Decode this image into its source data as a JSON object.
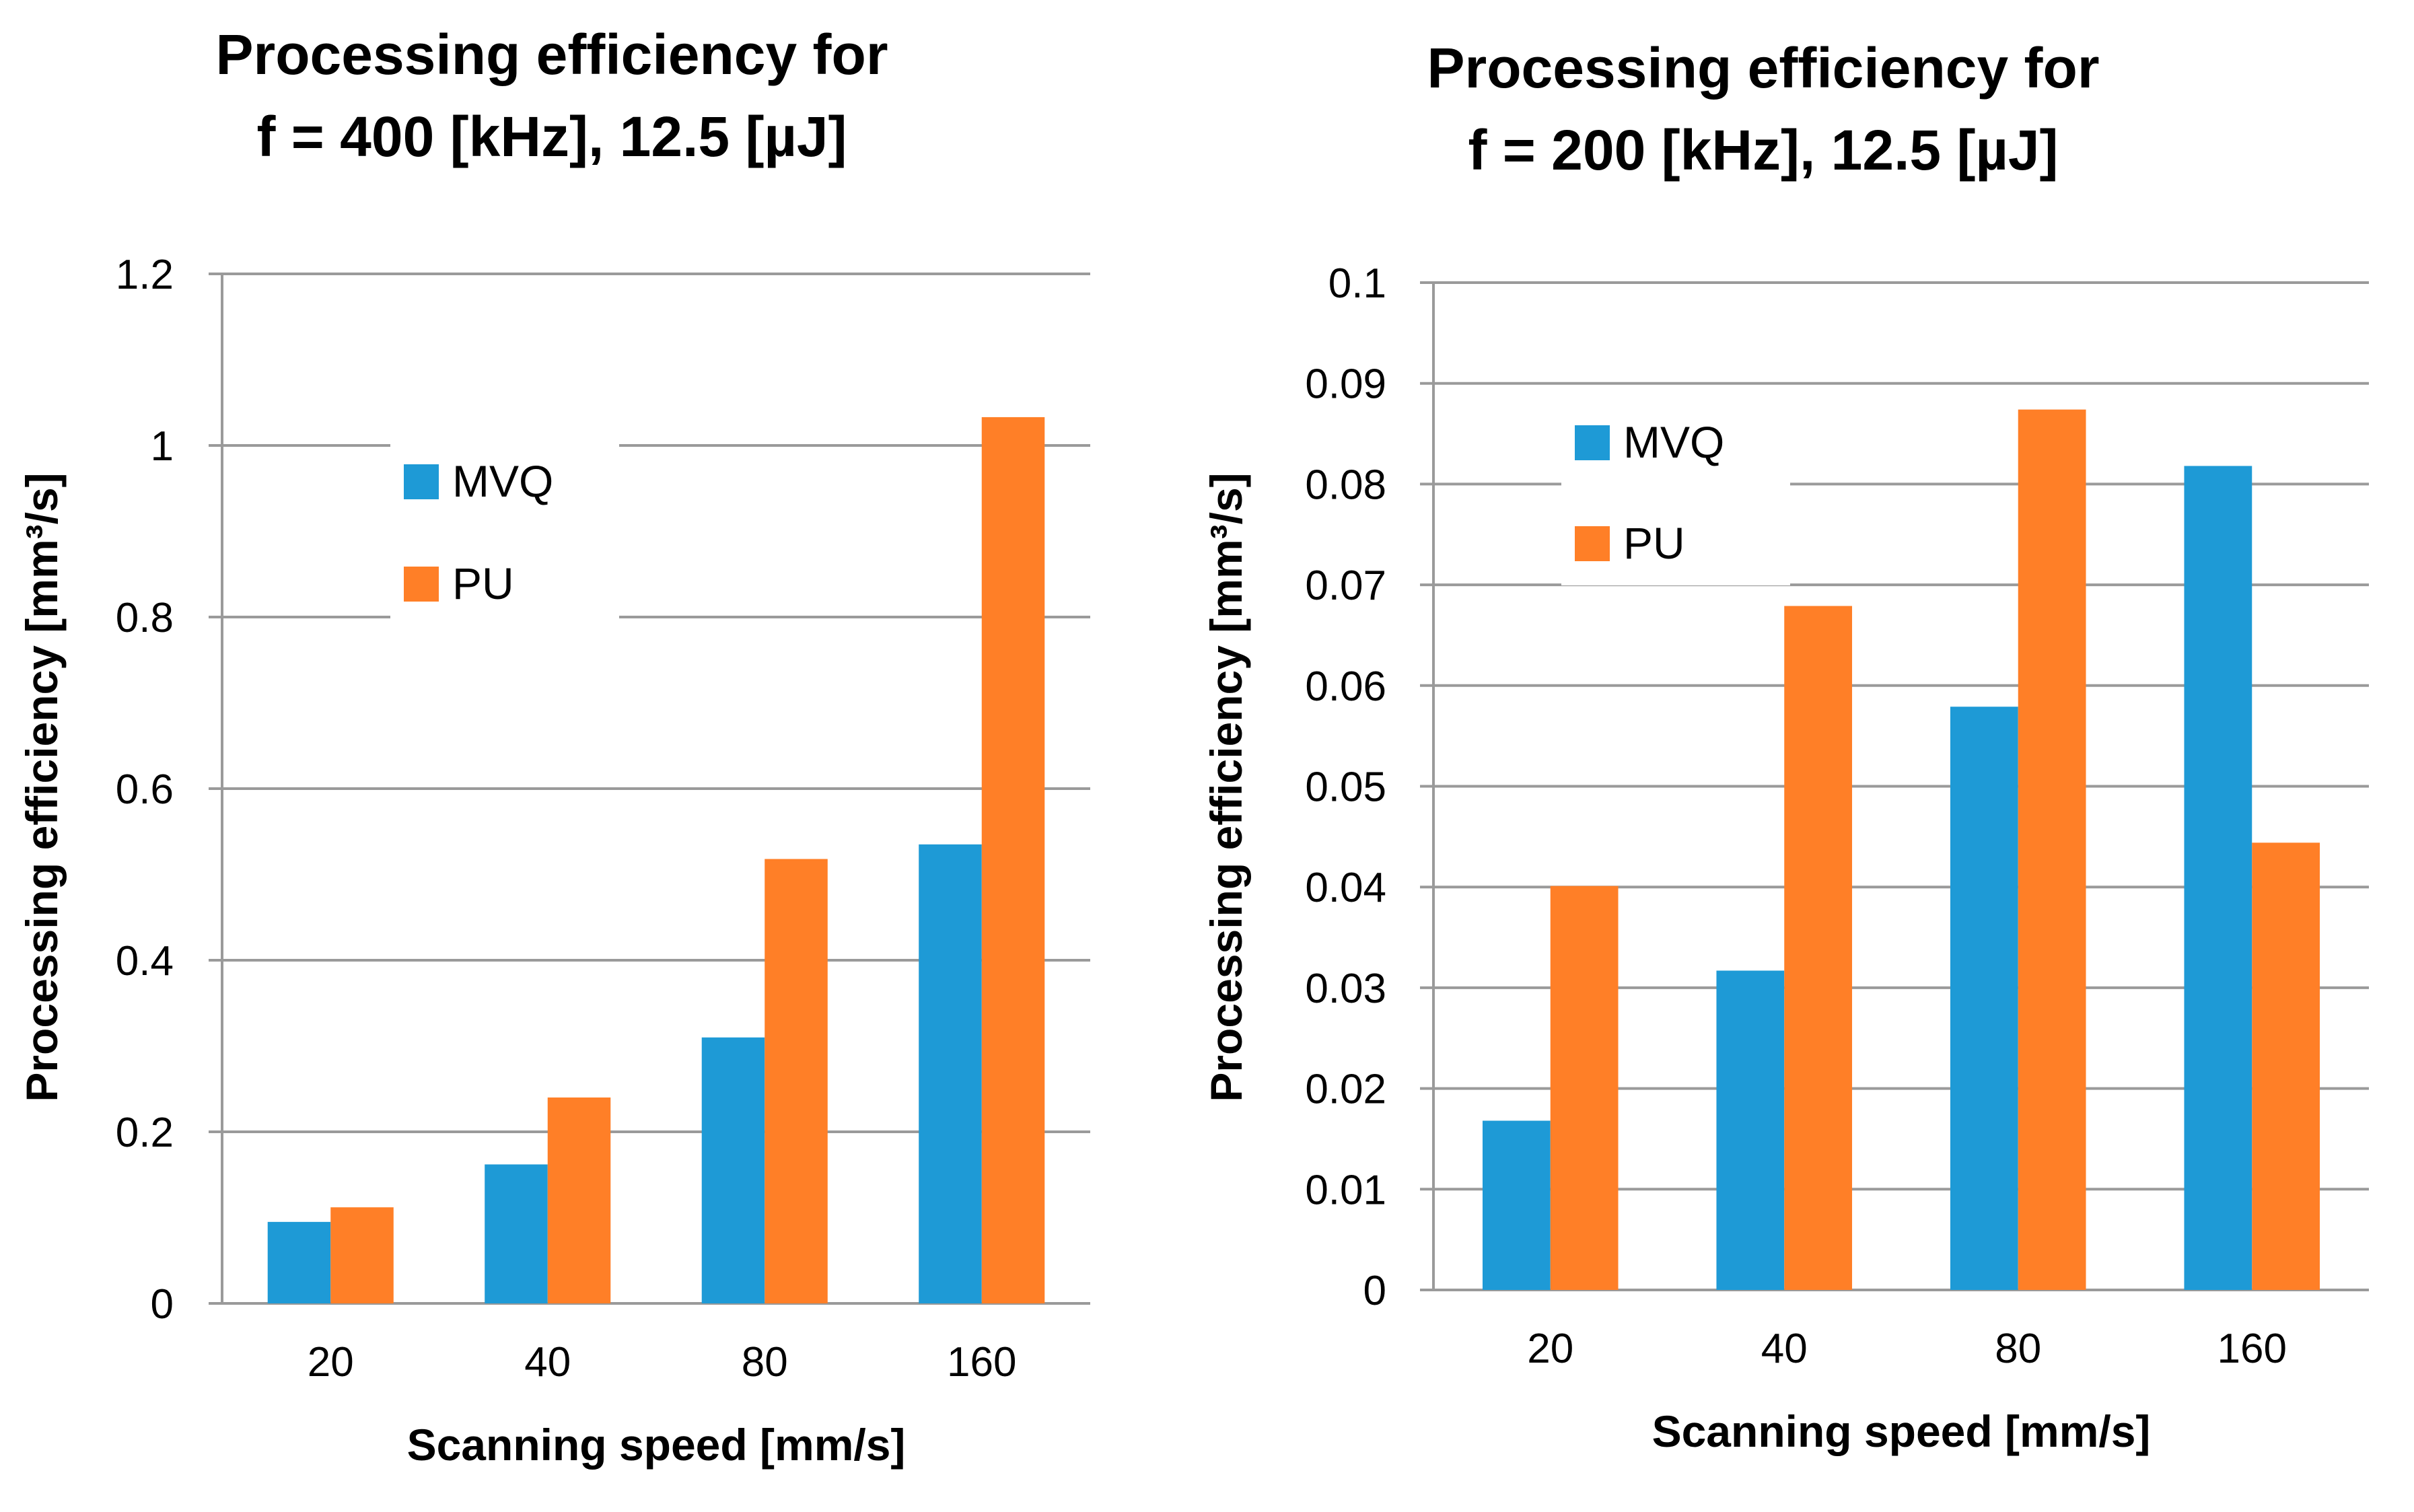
{
  "chart_data": [
    {
      "type": "bar",
      "title_lines": [
        "Processing efficiency for",
        "f = 400 [kHz], 12.5 [µJ]"
      ],
      "categories": [
        "20",
        "40",
        "80",
        "160"
      ],
      "series": [
        {
          "name": "MVQ",
          "color": "#1e9ad6",
          "values": [
            0.095,
            0.162,
            0.31,
            0.535
          ]
        },
        {
          "name": "PU",
          "color": "#ff7f27",
          "values": [
            0.112,
            0.24,
            0.518,
            1.033
          ]
        }
      ],
      "xlabel": "Scanning speed [mm/s]",
      "ylabel": "Processing efficiency [mm³/s]",
      "ylim": [
        0,
        1.2
      ],
      "yticks": [
        "0",
        "0.2",
        "0.4",
        "0.6",
        "0.8",
        "1",
        "1.2"
      ],
      "grid": true,
      "legend": "inside-top-left"
    },
    {
      "type": "bar",
      "title_lines": [
        "Processing efficiency for",
        "f = 200 [kHz], 12.5 [µJ]"
      ],
      "categories": [
        "20",
        "40",
        "80",
        "160"
      ],
      "series": [
        {
          "name": "MVQ",
          "color": "#1e9ad6",
          "values": [
            0.0168,
            0.0317,
            0.0579,
            0.0818
          ]
        },
        {
          "name": "PU",
          "color": "#ff7f27",
          "values": [
            0.0401,
            0.0679,
            0.0874,
            0.0444
          ]
        }
      ],
      "xlabel": "Scanning speed [mm/s]",
      "ylabel": "Processing efficiency [mm³/s]",
      "ylim": [
        0,
        0.1
      ],
      "yticks": [
        "0",
        "0.01",
        "0.02",
        "0.03",
        "0.04",
        "0.05",
        "0.06",
        "0.07",
        "0.08",
        "0.09",
        "0.1"
      ],
      "grid": true,
      "legend": "inside-top-left"
    }
  ]
}
